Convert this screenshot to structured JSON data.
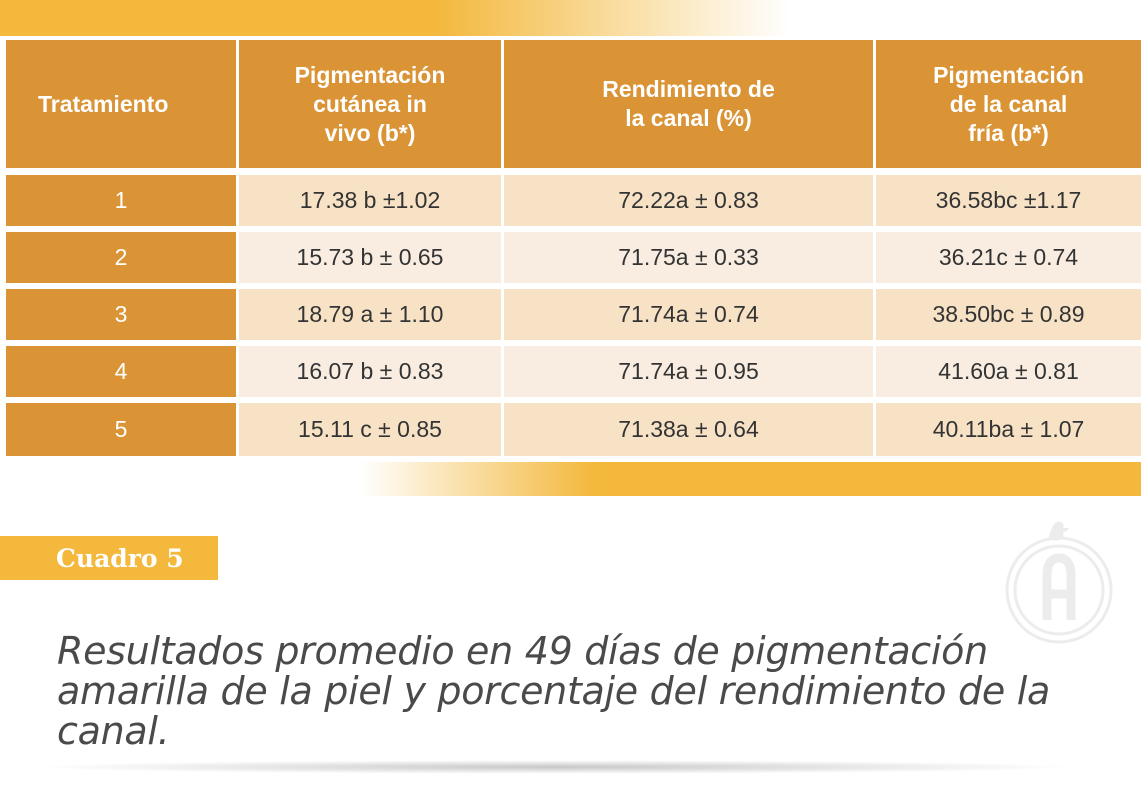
{
  "table": {
    "headers": [
      "Tratamiento",
      "Pigmentación\ncutánea in\nvivo (b*)",
      "Rendimiento de\nla canal (%)",
      "Pigmentación\nde la canal\nfría (b*)"
    ],
    "rows": [
      {
        "tratamiento": "1",
        "pigmentacion_cutanea": "17.38 b ±1.02",
        "rendimiento": "72.22a ± 0.83",
        "pigmentacion_canal": "36.58bc ±1.17"
      },
      {
        "tratamiento": "2",
        "pigmentacion_cutanea": "15.73 b ± 0.65",
        "rendimiento": "71.75a ± 0.33",
        "pigmentacion_canal": "36.21c ± 0.74"
      },
      {
        "tratamiento": "3",
        "pigmentacion_cutanea": "18.79 a ± 1.10",
        "rendimiento": "71.74a ± 0.74",
        "pigmentacion_canal": "38.50bc ± 0.89"
      },
      {
        "tratamiento": "4",
        "pigmentacion_cutanea": "16.07 b ± 0.83",
        "rendimiento": "71.74a ± 0.95",
        "pigmentacion_canal": "41.60a ± 0.81"
      },
      {
        "tratamiento": "5",
        "pigmentacion_cutanea": "15.11 c ± 0.85",
        "rendimiento": "71.38a ± 0.64",
        "pigmentacion_canal": "40.11ba ± 1.07"
      }
    ]
  },
  "label": "Cuadro 5",
  "caption": "Resultados promedio en 49 días de pigmentación amarilla de la piel y porcentaje del rendimiento de la canal.",
  "colors": {
    "header_bg": "#da9436",
    "accent_yellow": "#f3b83c",
    "row_light": "#f7e2c6",
    "row_lighter": "#f8ede0",
    "text_dark": "#4a4a4a"
  },
  "icons": {
    "watermark": "chicken-letter-a-logo"
  }
}
